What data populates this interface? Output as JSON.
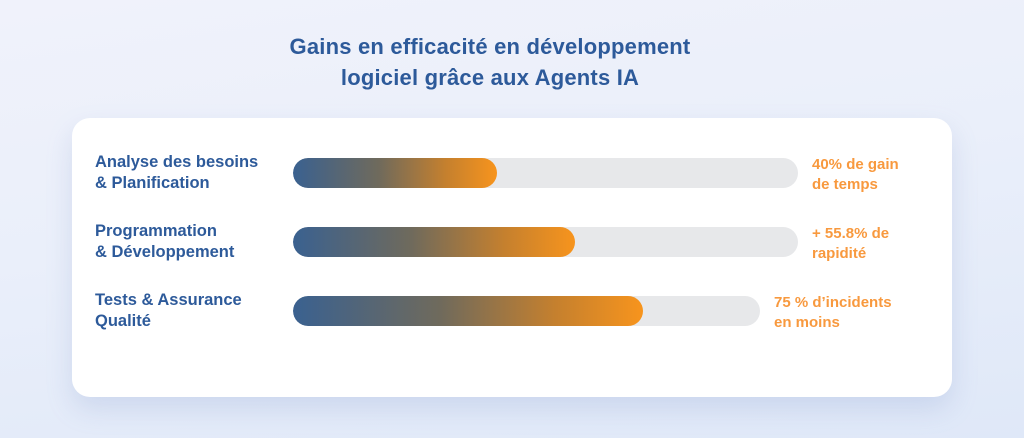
{
  "title": {
    "line1": "Gains en efficacité en développement",
    "line2": "logiciel grâce aux Agents IA"
  },
  "rows": [
    {
      "label_line1": "Analyse des besoins",
      "label_line2": "& Planification",
      "value_line1": "40% de gain",
      "value_line2": "de temps",
      "percent": 40.4,
      "track_width": 505
    },
    {
      "label_line1": "Programmation",
      "label_line2": "& Développement",
      "value_line1": "+ 55.8% de",
      "value_line2": "rapidité",
      "percent": 55.8,
      "track_width": 505
    },
    {
      "label_line1": "Tests & Assurance",
      "label_line2": "Qualité",
      "value_line1": "75 % d’incidents",
      "value_line2": "en moins",
      "percent": 75,
      "track_width": 467
    }
  ],
  "colors": {
    "title_text": "#2d5a9a",
    "label_text": "#2d5a9a",
    "value_text": "#f8993e",
    "bar_gradient_start": "#3a6190",
    "bar_gradient_end": "#f7941d",
    "bar_track": "#e7e8ea",
    "card_background": "#ffffff",
    "page_background_top": "#f0f2fb",
    "page_background_bottom": "#dfe8f8"
  },
  "chart_data": {
    "type": "bar",
    "orientation": "horizontal",
    "title": "Gains en efficacité en développement logiciel grâce aux Agents IA",
    "categories": [
      "Analyse des besoins & Planification",
      "Programmation & Développement",
      "Tests & Assurance Qualité"
    ],
    "values": [
      40,
      55.8,
      75
    ],
    "unit": "%",
    "annotations": [
      "40% de gain de temps",
      "+ 55.8% de rapidité",
      "75 % d’incidents en moins"
    ],
    "xlim": [
      0,
      100
    ],
    "grid": false,
    "legend": false,
    "bar_style": "pill gradient blue-to-orange on light gray track"
  }
}
